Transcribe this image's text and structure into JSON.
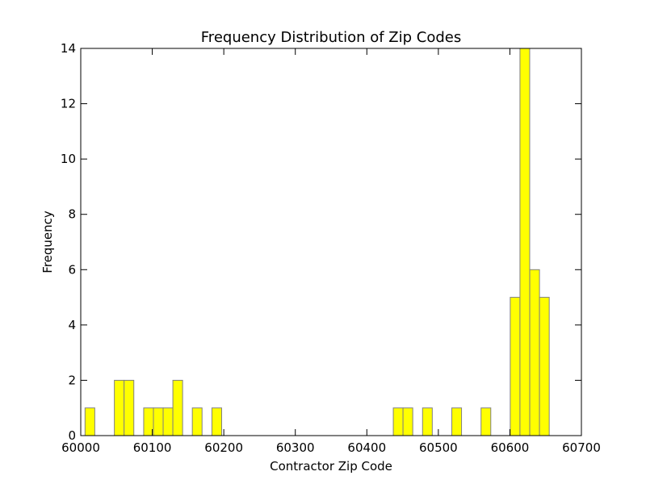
{
  "chart_data": {
    "type": "bar",
    "title": "Frequency Distribution of Zip Codes",
    "xlabel": "Contractor Zip Code",
    "ylabel": "Frequency",
    "xlim": [
      60000,
      60700
    ],
    "ylim": [
      0,
      14
    ],
    "xticks": [
      "60000",
      "60100",
      "60200",
      "60300",
      "60400",
      "60500",
      "60600",
      "60700"
    ],
    "yticks": [
      "0",
      "2",
      "4",
      "6",
      "8",
      "10",
      "12",
      "14"
    ],
    "bin_width": 13.6,
    "bins": [
      {
        "x0": 60006.0,
        "value": 1
      },
      {
        "x0": 60047.0,
        "value": 2
      },
      {
        "x0": 60060.6,
        "value": 2
      },
      {
        "x0": 60088.0,
        "value": 1
      },
      {
        "x0": 60101.6,
        "value": 1
      },
      {
        "x0": 60115.2,
        "value": 1
      },
      {
        "x0": 60128.8,
        "value": 2
      },
      {
        "x0": 60156.0,
        "value": 1
      },
      {
        "x0": 60183.4,
        "value": 1
      },
      {
        "x0": 60437.0,
        "value": 1
      },
      {
        "x0": 60450.6,
        "value": 1
      },
      {
        "x0": 60477.9,
        "value": 1
      },
      {
        "x0": 60518.8,
        "value": 1
      },
      {
        "x0": 60559.7,
        "value": 1
      },
      {
        "x0": 60600.5,
        "value": 5
      },
      {
        "x0": 60614.1,
        "value": 14
      },
      {
        "x0": 60627.8,
        "value": 6
      },
      {
        "x0": 60641.4,
        "value": 5
      }
    ],
    "bar_color": "#ffff00",
    "bar_edge_color": "#808080",
    "grid": false,
    "legend": "none"
  }
}
